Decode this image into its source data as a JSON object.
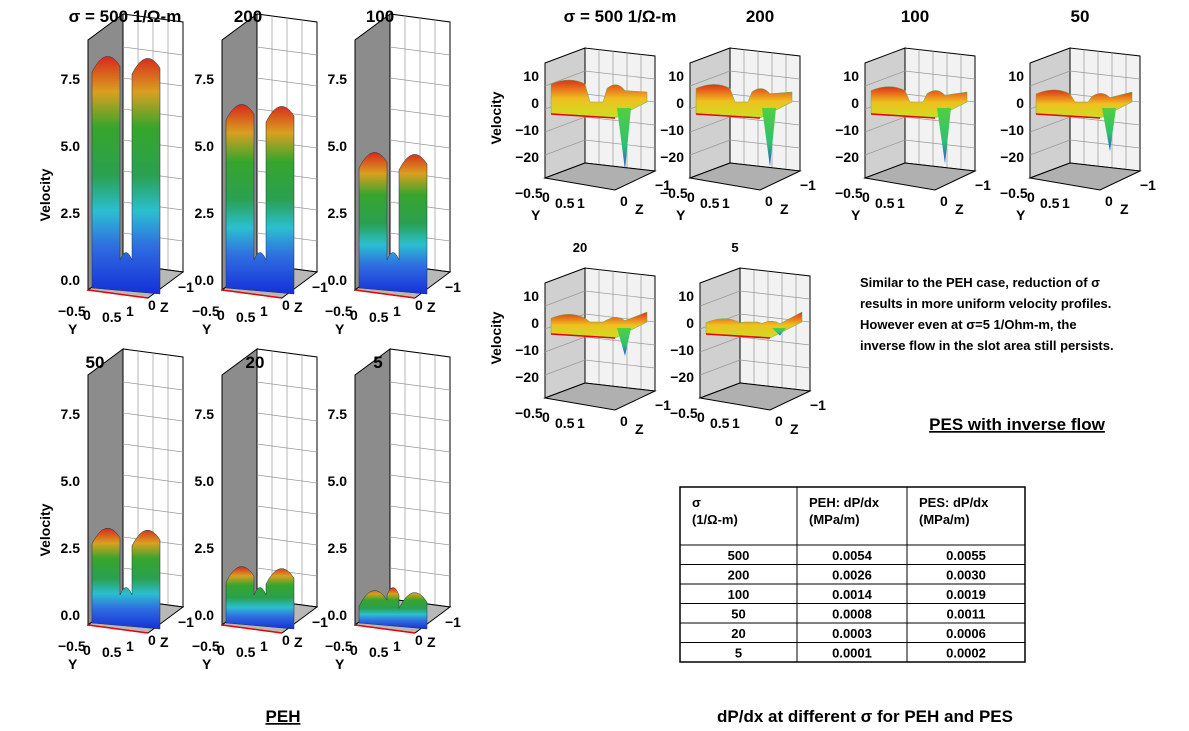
{
  "peh": {
    "caption": "PEH",
    "panels": [
      {
        "title": "σ = 500 1/Ω-m",
        "ylabel": "Velocity",
        "vticks": [
          "7.5",
          "5.0",
          "2.5",
          "0.0"
        ],
        "yticks": [
          "−0.5",
          "0",
          "0.5",
          "1"
        ],
        "zticks": [
          "0",
          "−1"
        ],
        "yaxis": "Y",
        "zaxis": "Z"
      },
      {
        "title": "200",
        "vticks": [
          "7.5",
          "5.0",
          "2.5",
          "0.0"
        ],
        "yticks": [
          "−0.5",
          "0",
          "0.5",
          "1"
        ],
        "zticks": [
          "0",
          "−1"
        ],
        "yaxis": "Y",
        "zaxis": "Z"
      },
      {
        "title": "100",
        "vticks": [
          "7.5",
          "5.0",
          "2.5",
          "0.0"
        ],
        "yticks": [
          "−0.5",
          "0",
          "0.5",
          "1"
        ],
        "zticks": [
          "0",
          "−1"
        ],
        "yaxis": "Y",
        "zaxis": "Z"
      },
      {
        "title": "50",
        "ylabel": "Velocity",
        "vticks": [
          "7.5",
          "5.0",
          "2.5",
          "0.0"
        ],
        "yticks": [
          "−0.5",
          "0",
          "0.5",
          "1"
        ],
        "zticks": [
          "0",
          "−1"
        ],
        "yaxis": "Y",
        "zaxis": "Z"
      },
      {
        "title": "20",
        "vticks": [
          "7.5",
          "5.0",
          "2.5",
          "0.0"
        ],
        "yticks": [
          "−0.5",
          "0",
          "0.5",
          "1"
        ],
        "zticks": [
          "0",
          "−1"
        ],
        "yaxis": "Y",
        "zaxis": "Z"
      },
      {
        "title": "5",
        "vticks": [
          "7.5",
          "5.0",
          "2.5",
          "0.0"
        ],
        "yticks": [
          "−0.5",
          "0",
          "0.5",
          "1"
        ],
        "zticks": [
          "0",
          "−1"
        ],
        "yaxis": "Y",
        "zaxis": "Z"
      }
    ]
  },
  "pes": {
    "caption": "PES with inverse flow",
    "panels": [
      {
        "title": "σ = 500 1/Ω-m",
        "ylabel": "Velocity",
        "vticks": [
          "10",
          "0",
          "−10",
          "−20"
        ],
        "yticks": [
          "−0.5",
          "0",
          "0.5",
          "1"
        ],
        "zticks": [
          "0",
          "−1"
        ],
        "yaxis": "Y",
        "zaxis": "Z"
      },
      {
        "title": "200",
        "vticks": [
          "10",
          "0",
          "−10",
          "−20"
        ],
        "yticks": [
          "−0.5",
          "0",
          "0.5",
          "1"
        ],
        "zticks": [
          "0",
          "−1"
        ],
        "yaxis": "Y",
        "zaxis": "Z"
      },
      {
        "title": "100",
        "vticks": [
          "10",
          "0",
          "−10",
          "−20"
        ],
        "yticks": [
          "−0.5",
          "0",
          "0.5",
          "1"
        ],
        "zticks": [
          "0",
          "−1"
        ],
        "yaxis": "Y",
        "zaxis": "Z"
      },
      {
        "title": "50",
        "vticks": [
          "10",
          "0",
          "−10",
          "−20"
        ],
        "yticks": [
          "−0.5",
          "0",
          "0.5",
          "1"
        ],
        "zticks": [
          "0",
          "−1"
        ],
        "yaxis": "Y",
        "zaxis": "Z"
      },
      {
        "title": "20",
        "ylabel": "Velocity",
        "vticks": [
          "10",
          "0",
          "−10",
          "−20"
        ],
        "yticks": [
          "−0.5",
          "0",
          "0.5",
          "1"
        ],
        "zticks": [
          "0",
          "−1"
        ],
        "zaxis": "Z"
      },
      {
        "title": "5",
        "vticks": [
          "10",
          "0",
          "−10",
          "−20"
        ],
        "yticks": [
          "−0.5",
          "0",
          "0.5",
          "1"
        ],
        "zticks": [
          "0",
          "−1"
        ],
        "zaxis": "Z"
      }
    ],
    "note": [
      "Similar to the PEH case, reduction of σ",
      "results in more uniform velocity profiles.",
      "However even at σ=5 1/Ohm-m, the",
      "inverse flow in the slot area still persists."
    ]
  },
  "table": {
    "header": [
      [
        "σ",
        "(1/Ω-m)"
      ],
      [
        "PEH: dP/dx",
        "(MPa/m)"
      ],
      [
        "PES: dP/dx",
        "(MPa/m)"
      ]
    ],
    "rows": [
      [
        "500",
        "0.0054",
        "0.0055"
      ],
      [
        "200",
        "0.0026",
        "0.0030"
      ],
      [
        "100",
        "0.0014",
        "0.0019"
      ],
      [
        "50",
        "0.0008",
        "0.0011"
      ],
      [
        "20",
        "0.0003",
        "0.0006"
      ],
      [
        "5",
        "0.0001",
        "0.0002"
      ]
    ],
    "caption": "dP/dx at different σ for PEH and PES"
  }
}
